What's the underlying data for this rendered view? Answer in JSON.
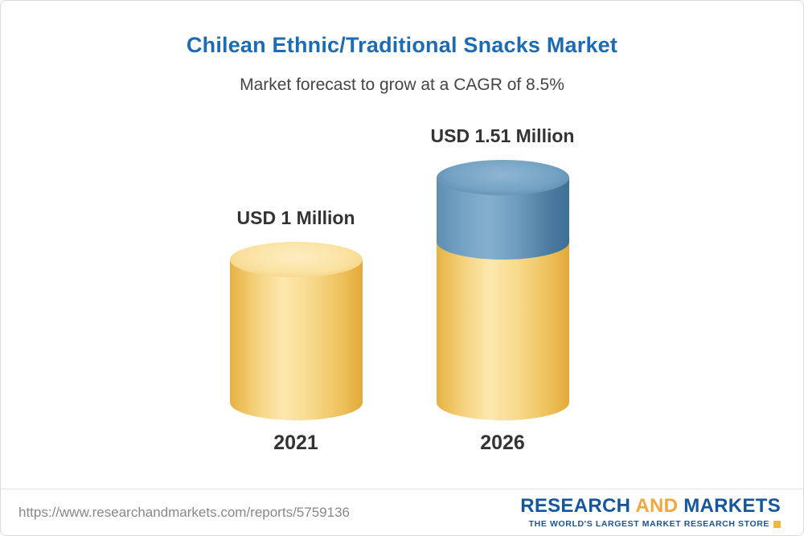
{
  "header": {
    "title": "Chilean Ethnic/Traditional Snacks Market",
    "subtitle": "Market forecast to grow at a CAGR of 8.5%"
  },
  "chart_data": {
    "type": "bar",
    "subtype": "3d-cylinder-stacked",
    "categories": [
      "2021",
      "2026"
    ],
    "values": [
      1,
      1.51
    ],
    "value_labels": [
      "USD 1 Million",
      "USD 1.51 Million"
    ],
    "unit": "USD Million",
    "title": "Chilean Ethnic/Traditional Snacks Market",
    "subtitle": "Market forecast to grow at a CAGR of 8.5%",
    "cagr_percent": 8.5,
    "legend": "none",
    "grid": false,
    "colors": {
      "bar_base": "#F5C963",
      "bar_growth": "#5E90B5",
      "title": "#1B6CB4",
      "labels": "#333333"
    }
  },
  "footer": {
    "url": "https://www.researchandmarkets.com/reports/5759136",
    "logo": {
      "research": "RESEARCH",
      "and": "AND",
      "markets": "MARKETS",
      "tagline": "THE WORLD'S LARGEST MARKET RESEARCH STORE"
    }
  }
}
